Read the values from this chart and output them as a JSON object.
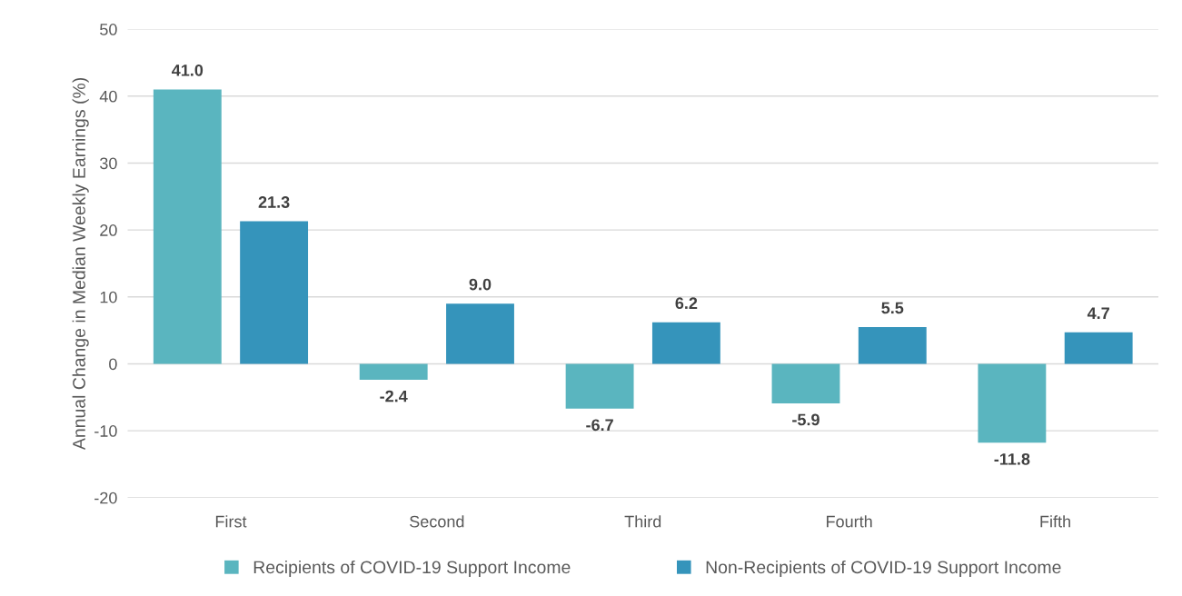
{
  "chart_data": {
    "type": "bar",
    "ylabel": "Annual Change in Median Weekly Earnings (%)",
    "categories": [
      "First",
      "Second",
      "Third",
      "Fourth",
      "Fifth"
    ],
    "series": [
      {
        "name": "Recipients of COVID-19 Support Income",
        "color": "#5ab5bf",
        "values": [
          41.0,
          -2.4,
          -6.7,
          -5.9,
          -11.8
        ],
        "value_labels": [
          "41.0",
          "-2.4",
          "-6.7",
          "-5.9",
          "-11.8"
        ]
      },
      {
        "name": "Non-Recipients of COVID-19 Support Income",
        "color": "#3594bb",
        "values": [
          21.3,
          9.0,
          6.2,
          5.5,
          4.7
        ],
        "value_labels": [
          "21.3",
          "9.0",
          "6.2",
          "5.5",
          "4.7"
        ]
      }
    ],
    "ylim": [
      -20,
      50
    ],
    "yticks": [
      -20,
      -10,
      0,
      10,
      20,
      30,
      40,
      50
    ],
    "grid": "y",
    "legend": "bottom"
  }
}
